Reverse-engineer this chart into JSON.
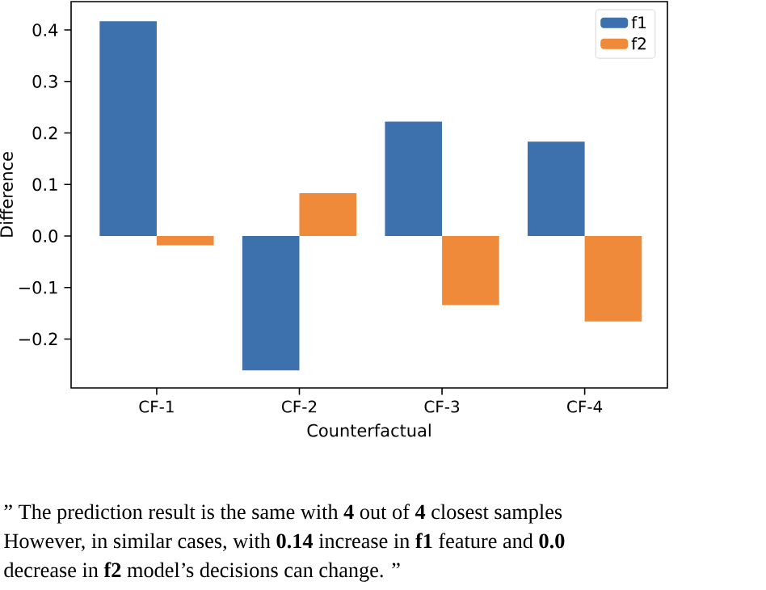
{
  "chart_data": {
    "type": "bar",
    "xlabel": "Counterfactual",
    "ylabel": "Difference",
    "categories": [
      "CF-1",
      "CF-2",
      "CF-3",
      "CF-4"
    ],
    "series": [
      {
        "name": "f1",
        "color": "#3c71ae",
        "values": [
          0.417,
          -0.261,
          0.222,
          0.183
        ]
      },
      {
        "name": "f2",
        "color": "#ee8a3a",
        "values": [
          -0.018,
          0.083,
          -0.134,
          -0.166
        ]
      }
    ],
    "ylim": [
      -0.295,
      0.455
    ],
    "yticks": [
      {
        "value": -0.2,
        "label": "−0.2"
      },
      {
        "value": -0.1,
        "label": "−0.1"
      },
      {
        "value": 0,
        "label": "0.0"
      },
      0.1,
      0.2,
      0.3,
      0.4
    ],
    "legend": "top right",
    "annotations": [
      "” The prediction result is the same with **4** out of **4** closest samples",
      "However, in similar cases, with **0.14** increase in **f1** feature and **0.0**",
      "decrease in **f2** model’s decisions can change. ”"
    ]
  }
}
